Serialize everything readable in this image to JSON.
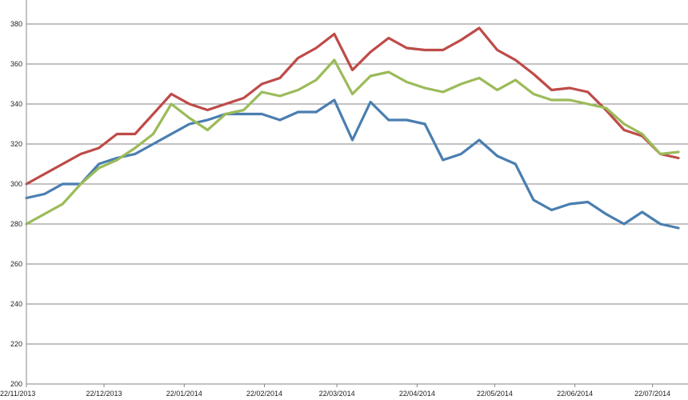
{
  "chart_data": {
    "type": "line",
    "title": "",
    "xlabel": "",
    "ylabel": "",
    "ylim": [
      200,
      380
    ],
    "y_ticks": [
      200,
      220,
      240,
      260,
      280,
      300,
      320,
      340,
      360,
      380
    ],
    "grid": "horizontal",
    "legend": "none",
    "x_tick_labels": [
      "22/11/2013",
      "22/12/2013",
      "22/01/2014",
      "22/02/2014",
      "22/03/2014",
      "22/04/2014",
      "22/05/2014",
      "22/06/2014",
      "22/07/2014"
    ],
    "x": [
      "2013-11-22",
      "2013-11-29",
      "2013-12-06",
      "2013-12-13",
      "2013-12-20",
      "2013-12-27",
      "2014-01-03",
      "2014-01-10",
      "2014-01-17",
      "2014-01-24",
      "2014-01-31",
      "2014-02-07",
      "2014-02-14",
      "2014-02-21",
      "2014-02-28",
      "2014-03-07",
      "2014-03-14",
      "2014-03-21",
      "2014-03-28",
      "2014-04-04",
      "2014-04-11",
      "2014-04-18",
      "2014-04-25",
      "2014-05-02",
      "2014-05-09",
      "2014-05-16",
      "2014-05-23",
      "2014-05-30",
      "2014-06-06",
      "2014-06-13",
      "2014-06-20",
      "2014-06-27",
      "2014-07-04",
      "2014-07-11",
      "2014-07-18",
      "2014-07-25",
      "2014-08-01"
    ],
    "series": [
      {
        "color": "#4a7eb0",
        "values": [
          293,
          295,
          300,
          300,
          310,
          313,
          315,
          320,
          325,
          330,
          332,
          335,
          335,
          335,
          332,
          336,
          336,
          342,
          322,
          341,
          332,
          332,
          330,
          312,
          315,
          322,
          314,
          310,
          292,
          287,
          290,
          291,
          285,
          280,
          286,
          280,
          278
        ]
      },
      {
        "color": "#be4b48",
        "values": [
          300,
          305,
          310,
          315,
          318,
          325,
          325,
          335,
          345,
          340,
          337,
          340,
          343,
          350,
          353,
          363,
          368,
          375,
          357,
          366,
          373,
          368,
          367,
          367,
          372,
          378,
          367,
          362,
          355,
          347,
          348,
          346,
          337,
          327,
          324,
          315,
          313
        ]
      },
      {
        "color": "#9bbb59",
        "values": [
          280,
          285,
          290,
          300,
          308,
          312,
          318,
          325,
          340,
          333,
          327,
          335,
          337,
          346,
          344,
          347,
          352,
          362,
          345,
          354,
          356,
          351,
          348,
          346,
          350,
          353,
          347,
          352,
          345,
          342,
          342,
          340,
          338,
          330,
          325,
          315,
          316
        ]
      }
    ]
  }
}
